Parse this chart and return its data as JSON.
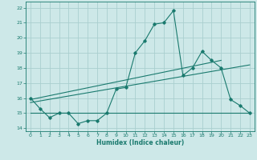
{
  "title": "",
  "xlabel": "Humidex (Indice chaleur)",
  "xlim": [
    -0.5,
    23.5
  ],
  "ylim": [
    13.8,
    22.4
  ],
  "xticks": [
    0,
    1,
    2,
    3,
    4,
    5,
    6,
    7,
    8,
    9,
    10,
    11,
    12,
    13,
    14,
    15,
    16,
    17,
    18,
    19,
    20,
    21,
    22,
    23
  ],
  "yticks": [
    14,
    15,
    16,
    17,
    18,
    19,
    20,
    21,
    22
  ],
  "bg_color": "#cde8e8",
  "grid_color": "#aacfcf",
  "line_color": "#1a7a6e",
  "line1_x": [
    0,
    1,
    2,
    3,
    4,
    5,
    6,
    7,
    8,
    9,
    10,
    11,
    12,
    13,
    14,
    15,
    16,
    17,
    18,
    19,
    20,
    21,
    22,
    23
  ],
  "line1_y": [
    16.0,
    15.3,
    14.7,
    15.0,
    15.0,
    14.3,
    14.5,
    14.5,
    15.0,
    16.6,
    16.7,
    19.0,
    19.8,
    20.9,
    21.0,
    21.8,
    17.5,
    18.0,
    19.1,
    18.5,
    18.0,
    15.9,
    15.5,
    15.0
  ],
  "line2_x": [
    0,
    23
  ],
  "line2_y": [
    15.7,
    18.2
  ],
  "line3_x": [
    0,
    20
  ],
  "line3_y": [
    15.9,
    18.5
  ],
  "line4_x": [
    0,
    23
  ],
  "line4_y": [
    15.0,
    15.0
  ]
}
